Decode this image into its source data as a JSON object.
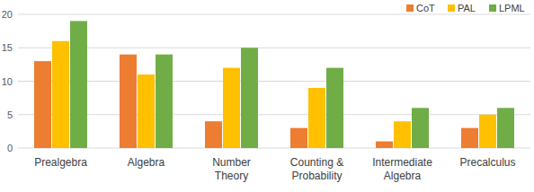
{
  "chart_data": {
    "type": "bar",
    "categories": [
      "Prealgebra",
      "Algebra",
      "Number Theory",
      "Counting & Probability",
      "Intermediate Algebra",
      "Precalculus"
    ],
    "series": [
      {
        "name": "CoT",
        "color": "#ed7d31",
        "values": [
          13,
          14,
          4,
          3,
          1,
          3
        ]
      },
      {
        "name": "PAL",
        "color": "#ffc000",
        "values": [
          16,
          11,
          12,
          9,
          4,
          5
        ]
      },
      {
        "name": "LPML",
        "color": "#70ad47",
        "values": [
          19,
          14,
          15,
          12,
          6,
          6
        ]
      }
    ],
    "ylim": [
      0,
      20
    ],
    "yticks": [
      0,
      5,
      10,
      15,
      20
    ],
    "grid": true,
    "legend": "top-right"
  }
}
